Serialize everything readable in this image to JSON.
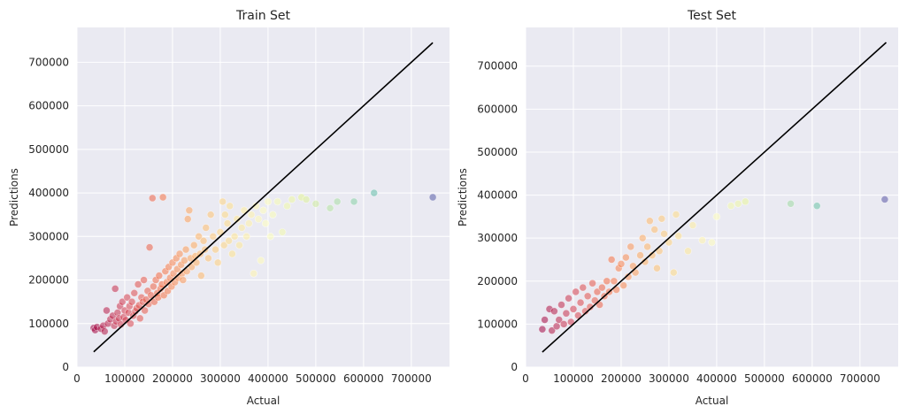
{
  "chart_data": [
    {
      "type": "scatter",
      "title": "Train Set",
      "xlabel": "Actual",
      "ylabel": "Predictions",
      "xlim": [
        0,
        780000
      ],
      "ylim": [
        0,
        780000
      ],
      "xticks": [
        "0",
        "100000",
        "200000",
        "300000",
        "400000",
        "500000",
        "600000",
        "700000"
      ],
      "yticks": [
        "0",
        "100000",
        "200000",
        "300000",
        "400000",
        "500000",
        "600000",
        "700000"
      ],
      "grid": true,
      "identity_line": [
        [
          35000,
          35000
        ],
        [
          745000,
          745000
        ]
      ],
      "colormap": "Spectral",
      "points": [
        [
          35000,
          90000
        ],
        [
          38000,
          85000
        ],
        [
          42000,
          92000
        ],
        [
          50000,
          88000
        ],
        [
          55000,
          95000
        ],
        [
          58000,
          82000
        ],
        [
          62000,
          130000
        ],
        [
          65000,
          100000
        ],
        [
          70000,
          110000
        ],
        [
          75000,
          118000
        ],
        [
          78000,
          95000
        ],
        [
          80000,
          180000
        ],
        [
          82000,
          105000
        ],
        [
          85000,
          125000
        ],
        [
          88000,
          112000
        ],
        [
          90000,
          140000
        ],
        [
          92000,
          98000
        ],
        [
          95000,
          150000
        ],
        [
          98000,
          115000
        ],
        [
          100000,
          130000
        ],
        [
          102000,
          108000
        ],
        [
          105000,
          160000
        ],
        [
          108000,
          125000
        ],
        [
          110000,
          140000
        ],
        [
          112000,
          100000
        ],
        [
          115000,
          150000
        ],
        [
          118000,
          118000
        ],
        [
          120000,
          170000
        ],
        [
          122000,
          128000
        ],
        [
          125000,
          135000
        ],
        [
          128000,
          190000
        ],
        [
          130000,
          142000
        ],
        [
          132000,
          112000
        ],
        [
          135000,
          160000
        ],
        [
          138000,
          150000
        ],
        [
          140000,
          200000
        ],
        [
          142000,
          130000
        ],
        [
          145000,
          155000
        ],
        [
          148000,
          175000
        ],
        [
          150000,
          145000
        ],
        [
          152000,
          275000
        ],
        [
          155000,
          165000
        ],
        [
          158000,
          388000
        ],
        [
          160000,
          185000
        ],
        [
          162000,
          150000
        ],
        [
          165000,
          200000
        ],
        [
          168000,
          170000
        ],
        [
          170000,
          160000
        ],
        [
          172000,
          210000
        ],
        [
          175000,
          180000
        ],
        [
          178000,
          190000
        ],
        [
          180000,
          390000
        ],
        [
          182000,
          165000
        ],
        [
          185000,
          220000
        ],
        [
          188000,
          195000
        ],
        [
          190000,
          175000
        ],
        [
          192000,
          230000
        ],
        [
          195000,
          205000
        ],
        [
          198000,
          185000
        ],
        [
          200000,
          240000
        ],
        [
          202000,
          215000
        ],
        [
          205000,
          195000
        ],
        [
          208000,
          250000
        ],
        [
          210000,
          225000
        ],
        [
          212000,
          205000
        ],
        [
          215000,
          260000
        ],
        [
          218000,
          235000
        ],
        [
          220000,
          215000
        ],
        [
          222000,
          200000
        ],
        [
          225000,
          245000
        ],
        [
          228000,
          270000
        ],
        [
          230000,
          220000
        ],
        [
          232000,
          340000
        ],
        [
          235000,
          360000
        ],
        [
          238000,
          250000
        ],
        [
          240000,
          230000
        ],
        [
          245000,
          280000
        ],
        [
          248000,
          255000
        ],
        [
          250000,
          240000
        ],
        [
          255000,
          300000
        ],
        [
          258000,
          260000
        ],
        [
          260000,
          210000
        ],
        [
          265000,
          290000
        ],
        [
          268000,
          270000
        ],
        [
          270000,
          320000
        ],
        [
          275000,
          250000
        ],
        [
          280000,
          350000
        ],
        [
          285000,
          300000
        ],
        [
          290000,
          270000
        ],
        [
          295000,
          240000
        ],
        [
          300000,
          310000
        ],
        [
          305000,
          380000
        ],
        [
          308000,
          280000
        ],
        [
          310000,
          350000
        ],
        [
          315000,
          330000
        ],
        [
          318000,
          290000
        ],
        [
          320000,
          370000
        ],
        [
          325000,
          260000
        ],
        [
          330000,
          300000
        ],
        [
          335000,
          340000
        ],
        [
          340000,
          280000
        ],
        [
          345000,
          320000
        ],
        [
          350000,
          360000
        ],
        [
          355000,
          300000
        ],
        [
          360000,
          330000
        ],
        [
          365000,
          350000
        ],
        [
          370000,
          215000
        ],
        [
          375000,
          370000
        ],
        [
          380000,
          340000
        ],
        [
          385000,
          245000
        ],
        [
          390000,
          360000
        ],
        [
          395000,
          330000
        ],
        [
          400000,
          380000
        ],
        [
          405000,
          300000
        ],
        [
          410000,
          350000
        ],
        [
          420000,
          380000
        ],
        [
          430000,
          310000
        ],
        [
          440000,
          370000
        ],
        [
          450000,
          385000
        ],
        [
          470000,
          390000
        ],
        [
          480000,
          385000
        ],
        [
          500000,
          375000
        ],
        [
          530000,
          365000
        ],
        [
          545000,
          380000
        ],
        [
          580000,
          380000
        ],
        [
          622000,
          400000
        ],
        [
          745000,
          390000
        ]
      ]
    },
    {
      "type": "scatter",
      "title": "Test Set",
      "xlabel": "Actual",
      "ylabel": "Predictions",
      "xlim": [
        0,
        780000
      ],
      "ylim": [
        0,
        790000
      ],
      "xticks": [
        "0",
        "100000",
        "200000",
        "300000",
        "400000",
        "500000",
        "600000",
        "700000"
      ],
      "yticks": [
        "0",
        "100000",
        "200000",
        "300000",
        "400000",
        "500000",
        "600000",
        "700000"
      ],
      "grid": true,
      "identity_line": [
        [
          35000,
          35000
        ],
        [
          755000,
          755000
        ]
      ],
      "colormap": "Spectral",
      "points": [
        [
          35000,
          88000
        ],
        [
          40000,
          110000
        ],
        [
          50000,
          135000
        ],
        [
          55000,
          85000
        ],
        [
          60000,
          130000
        ],
        [
          65000,
          95000
        ],
        [
          70000,
          110000
        ],
        [
          75000,
          145000
        ],
        [
          80000,
          100000
        ],
        [
          85000,
          125000
        ],
        [
          90000,
          160000
        ],
        [
          95000,
          105000
        ],
        [
          100000,
          135000
        ],
        [
          105000,
          175000
        ],
        [
          110000,
          120000
        ],
        [
          115000,
          150000
        ],
        [
          120000,
          185000
        ],
        [
          125000,
          130000
        ],
        [
          130000,
          165000
        ],
        [
          135000,
          140000
        ],
        [
          140000,
          195000
        ],
        [
          145000,
          155000
        ],
        [
          150000,
          175000
        ],
        [
          155000,
          145000
        ],
        [
          160000,
          185000
        ],
        [
          165000,
          165000
        ],
        [
          170000,
          200000
        ],
        [
          175000,
          175000
        ],
        [
          180000,
          250000
        ],
        [
          185000,
          200000
        ],
        [
          190000,
          180000
        ],
        [
          195000,
          230000
        ],
        [
          200000,
          240000
        ],
        [
          205000,
          190000
        ],
        [
          210000,
          255000
        ],
        [
          215000,
          210000
        ],
        [
          220000,
          280000
        ],
        [
          225000,
          235000
        ],
        [
          230000,
          220000
        ],
        [
          240000,
          260000
        ],
        [
          245000,
          300000
        ],
        [
          250000,
          245000
        ],
        [
          255000,
          280000
        ],
        [
          260000,
          340000
        ],
        [
          265000,
          260000
        ],
        [
          270000,
          320000
        ],
        [
          275000,
          230000
        ],
        [
          280000,
          270000
        ],
        [
          285000,
          345000
        ],
        [
          290000,
          310000
        ],
        [
          300000,
          290000
        ],
        [
          310000,
          220000
        ],
        [
          315000,
          355000
        ],
        [
          320000,
          305000
        ],
        [
          340000,
          270000
        ],
        [
          350000,
          330000
        ],
        [
          370000,
          295000
        ],
        [
          390000,
          290000
        ],
        [
          400000,
          350000
        ],
        [
          430000,
          375000
        ],
        [
          445000,
          380000
        ],
        [
          460000,
          385000
        ],
        [
          555000,
          380000
        ],
        [
          610000,
          375000
        ],
        [
          752000,
          390000
        ]
      ]
    }
  ]
}
